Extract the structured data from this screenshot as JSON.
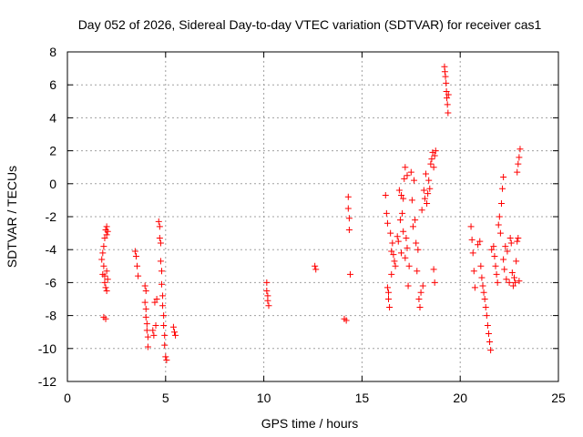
{
  "chart_data": {
    "type": "scatter",
    "title": "Day 052 of 2026, Sidereal Day-to-day VTEC variation (SDTVAR) for receiver cas1",
    "xlabel": "GPS time / hours",
    "ylabel": "SDTVAR / TECUs",
    "xlim": [
      0,
      25
    ],
    "ylim": [
      -12,
      8
    ],
    "xticks": [
      0,
      5,
      10,
      15,
      20,
      25
    ],
    "yticks": [
      -12,
      -10,
      -8,
      -6,
      -4,
      -2,
      0,
      2,
      4,
      6,
      8
    ],
    "grid": true,
    "marker": "+",
    "color": "#ff0000",
    "series": [
      {
        "name": "SDTVAR",
        "points": [
          [
            1.75,
            -4.6
          ],
          [
            1.8,
            -4.2
          ],
          [
            1.8,
            -5.5
          ],
          [
            1.85,
            -3.8
          ],
          [
            1.85,
            -5.0
          ],
          [
            1.9,
            -3.3
          ],
          [
            1.9,
            -5.6
          ],
          [
            1.9,
            -6.0
          ],
          [
            1.95,
            -2.8
          ],
          [
            1.95,
            -6.3
          ],
          [
            2.0,
            -2.6
          ],
          [
            2.0,
            -3.1
          ],
          [
            2.0,
            -5.3
          ],
          [
            2.0,
            -6.5
          ],
          [
            2.05,
            -2.9
          ],
          [
            2.05,
            -5.8
          ],
          [
            1.85,
            -8.1
          ],
          [
            1.95,
            -8.2
          ],
          [
            3.45,
            -4.1
          ],
          [
            3.5,
            -4.4
          ],
          [
            3.55,
            -5.0
          ],
          [
            3.6,
            -5.6
          ],
          [
            3.95,
            -6.2
          ],
          [
            3.95,
            -7.2
          ],
          [
            4.0,
            -7.6
          ],
          [
            4.0,
            -8.1
          ],
          [
            4.05,
            -8.5
          ],
          [
            4.05,
            -8.9
          ],
          [
            4.1,
            -9.3
          ],
          [
            4.1,
            -9.9
          ],
          [
            4.0,
            -6.5
          ],
          [
            4.35,
            -8.9
          ],
          [
            4.4,
            -9.2
          ],
          [
            4.45,
            -7.2
          ],
          [
            4.5,
            -8.6
          ],
          [
            4.55,
            -7.0
          ],
          [
            4.65,
            -2.3
          ],
          [
            4.7,
            -2.6
          ],
          [
            4.7,
            -3.3
          ],
          [
            4.75,
            -3.6
          ],
          [
            4.75,
            -4.7
          ],
          [
            4.8,
            -5.3
          ],
          [
            4.8,
            -6.1
          ],
          [
            4.85,
            -6.8
          ],
          [
            4.85,
            -7.4
          ],
          [
            4.9,
            -8.0
          ],
          [
            4.9,
            -8.6
          ],
          [
            4.95,
            -9.2
          ],
          [
            4.95,
            -9.8
          ],
          [
            5.0,
            -10.5
          ],
          [
            5.05,
            -10.7
          ],
          [
            5.4,
            -8.7
          ],
          [
            5.45,
            -9.0
          ],
          [
            5.5,
            -9.2
          ],
          [
            10.15,
            -6.0
          ],
          [
            10.15,
            -6.5
          ],
          [
            10.2,
            -6.8
          ],
          [
            10.2,
            -7.1
          ],
          [
            10.25,
            -7.4
          ],
          [
            12.6,
            -5.0
          ],
          [
            12.65,
            -5.2
          ],
          [
            14.1,
            -8.2
          ],
          [
            14.2,
            -8.3
          ],
          [
            14.3,
            -0.8
          ],
          [
            14.3,
            -1.5
          ],
          [
            14.35,
            -2.1
          ],
          [
            14.35,
            -2.8
          ],
          [
            14.4,
            -5.5
          ],
          [
            16.2,
            -0.7
          ],
          [
            16.25,
            -1.8
          ],
          [
            16.3,
            -2.4
          ],
          [
            16.3,
            -6.3
          ],
          [
            16.35,
            -6.6
          ],
          [
            16.35,
            -7.0
          ],
          [
            16.4,
            -7.5
          ],
          [
            16.45,
            -3.0
          ],
          [
            16.5,
            -4.1
          ],
          [
            16.5,
            -5.5
          ],
          [
            16.55,
            -3.6
          ],
          [
            16.6,
            -4.3
          ],
          [
            16.65,
            -4.7
          ],
          [
            16.7,
            -5.0
          ],
          [
            16.8,
            -3.2
          ],
          [
            16.85,
            -3.5
          ],
          [
            16.9,
            -0.4
          ],
          [
            16.95,
            -2.2
          ],
          [
            17.0,
            -0.7
          ],
          [
            17.0,
            -4.2
          ],
          [
            17.05,
            -1.8
          ],
          [
            17.1,
            -2.9
          ],
          [
            17.1,
            -0.9
          ],
          [
            17.15,
            0.3
          ],
          [
            17.2,
            1.0
          ],
          [
            17.2,
            -4.5
          ],
          [
            17.25,
            -3.3
          ],
          [
            17.3,
            0.5
          ],
          [
            17.3,
            -3.9
          ],
          [
            17.35,
            -6.2
          ],
          [
            17.4,
            -5.0
          ],
          [
            17.5,
            0.7
          ],
          [
            17.55,
            -1.0
          ],
          [
            17.6,
            -2.6
          ],
          [
            17.65,
            0.2
          ],
          [
            17.7,
            -2.2
          ],
          [
            17.75,
            -3.6
          ],
          [
            17.8,
            -5.3
          ],
          [
            17.85,
            -4.0
          ],
          [
            17.9,
            -7.0
          ],
          [
            17.95,
            -7.5
          ],
          [
            18.0,
            -6.6
          ],
          [
            18.05,
            -1.6
          ],
          [
            18.1,
            -6.2
          ],
          [
            18.15,
            -0.4
          ],
          [
            18.2,
            -0.9
          ],
          [
            18.25,
            0.6
          ],
          [
            18.3,
            -1.2
          ],
          [
            18.35,
            -0.6
          ],
          [
            18.4,
            0.2
          ],
          [
            18.45,
            -0.3
          ],
          [
            18.5,
            1.2
          ],
          [
            18.55,
            1.5
          ],
          [
            18.6,
            1.9
          ],
          [
            18.65,
            1.0
          ],
          [
            18.7,
            1.7
          ],
          [
            18.75,
            2.0
          ],
          [
            18.65,
            -5.2
          ],
          [
            18.7,
            -6.0
          ],
          [
            19.2,
            7.1
          ],
          [
            19.22,
            6.8
          ],
          [
            19.25,
            6.5
          ],
          [
            19.28,
            6.1
          ],
          [
            19.3,
            5.6
          ],
          [
            19.32,
            5.2
          ],
          [
            19.35,
            4.8
          ],
          [
            19.38,
            4.3
          ],
          [
            19.4,
            5.4
          ],
          [
            20.55,
            -2.6
          ],
          [
            20.6,
            -3.4
          ],
          [
            20.65,
            -4.2
          ],
          [
            20.7,
            -5.3
          ],
          [
            20.75,
            -6.3
          ],
          [
            20.9,
            -3.7
          ],
          [
            21.0,
            -3.5
          ],
          [
            21.05,
            -5.0
          ],
          [
            21.1,
            -5.7
          ],
          [
            21.15,
            -6.2
          ],
          [
            21.2,
            -6.6
          ],
          [
            21.25,
            -7.0
          ],
          [
            21.3,
            -7.5
          ],
          [
            21.35,
            -8.0
          ],
          [
            21.4,
            -8.6
          ],
          [
            21.45,
            -9.1
          ],
          [
            21.5,
            -9.6
          ],
          [
            21.55,
            -10.1
          ],
          [
            21.6,
            -4.0
          ],
          [
            21.7,
            -3.8
          ],
          [
            21.75,
            -4.4
          ],
          [
            21.8,
            -5.0
          ],
          [
            21.85,
            -5.5
          ],
          [
            21.9,
            -6.0
          ],
          [
            21.95,
            -2.5
          ],
          [
            22.0,
            -2.0
          ],
          [
            22.05,
            -3.0
          ],
          [
            22.1,
            -1.2
          ],
          [
            22.15,
            -0.3
          ],
          [
            22.2,
            0.4
          ],
          [
            22.2,
            -4.6
          ],
          [
            22.25,
            -5.2
          ],
          [
            22.3,
            -3.8
          ],
          [
            22.35,
            -5.8
          ],
          [
            22.4,
            -4.1
          ],
          [
            22.5,
            -6.0
          ],
          [
            22.55,
            -3.3
          ],
          [
            22.6,
            -3.6
          ],
          [
            22.65,
            -5.4
          ],
          [
            22.7,
            -6.2
          ],
          [
            22.75,
            -5.7
          ],
          [
            22.8,
            -6.0
          ],
          [
            22.85,
            -4.7
          ],
          [
            22.9,
            -3.5
          ],
          [
            22.9,
            0.7
          ],
          [
            22.95,
            1.2
          ],
          [
            23.0,
            1.6
          ],
          [
            23.05,
            2.1
          ],
          [
            22.95,
            -3.3
          ],
          [
            23.0,
            -5.9
          ]
        ]
      }
    ]
  }
}
